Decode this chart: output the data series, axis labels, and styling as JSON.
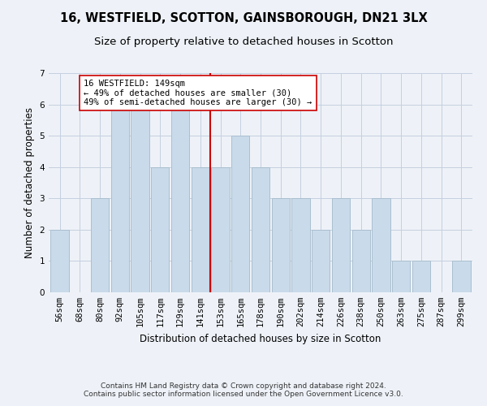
{
  "title": "16, WESTFIELD, SCOTTON, GAINSBOROUGH, DN21 3LX",
  "subtitle": "Size of property relative to detached houses in Scotton",
  "xlabel": "Distribution of detached houses by size in Scotton",
  "ylabel": "Number of detached properties",
  "bar_labels": [
    "56sqm",
    "68sqm",
    "80sqm",
    "92sqm",
    "105sqm",
    "117sqm",
    "129sqm",
    "141sqm",
    "153sqm",
    "165sqm",
    "178sqm",
    "190sqm",
    "202sqm",
    "214sqm",
    "226sqm",
    "238sqm",
    "250sqm",
    "263sqm",
    "275sqm",
    "287sqm",
    "299sqm"
  ],
  "bar_values": [
    2,
    0,
    3,
    6,
    6,
    4,
    6,
    4,
    4,
    5,
    4,
    3,
    3,
    2,
    3,
    2,
    3,
    1,
    1,
    0,
    1
  ],
  "bar_color": "#c9daea",
  "bar_edge_color": "#aabfcf",
  "grid_color": "#c5cfe0",
  "background_color": "#eef2f8",
  "subject_line_color": "#cc0000",
  "annotation_text": "16 WESTFIELD: 149sqm\n← 49% of detached houses are smaller (30)\n49% of semi-detached houses are larger (30) →",
  "annotation_box_color": "#ffffff",
  "annotation_box_edge": "#cc0000",
  "ylim": [
    0,
    7
  ],
  "yticks": [
    0,
    1,
    2,
    3,
    4,
    5,
    6,
    7
  ],
  "footer_text": "Contains HM Land Registry data © Crown copyright and database right 2024.\nContains public sector information licensed under the Open Government Licence v3.0.",
  "title_fontsize": 10.5,
  "subtitle_fontsize": 9.5,
  "axis_label_fontsize": 8.5,
  "tick_fontsize": 7.5,
  "annotation_fontsize": 7.5,
  "footer_fontsize": 6.5
}
